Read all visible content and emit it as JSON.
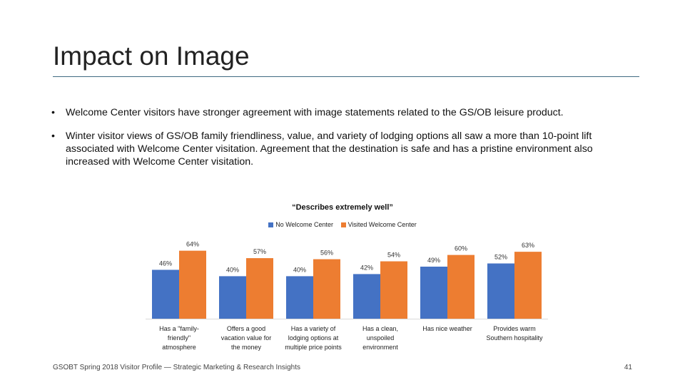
{
  "slide": {
    "title": "Impact on Image",
    "bullets": [
      "Welcome Center visitors have stronger agreement with image statements related to the GS/OB leisure product.",
      "Winter visitor views of GS/OB family friendliness, value, and variety of lodging options all saw a more than 10-point lift associated with Welcome Center visitation. Agreement that the destination is safe and has a pristine environment also increased with Welcome Center visitation."
    ],
    "bullet_glyph": "•",
    "footer": "GSOBT Spring 2018 Visitor Profile — Strategic Marketing & Research Insights",
    "page_number": "41"
  },
  "chart_data": {
    "type": "bar",
    "title": "“Describes extremely well”",
    "categories": [
      [
        "Has a \"family-",
        "friendly\"",
        "atmosphere"
      ],
      [
        "Offers a good",
        "vacation value for",
        "the money"
      ],
      [
        "Has a variety of",
        "lodging options at",
        "multiple price points"
      ],
      [
        "Has a clean,",
        "unspoiled",
        "environment"
      ],
      [
        "Has nice weather"
      ],
      [
        "Provides warm",
        "Southern hospitality"
      ]
    ],
    "series": [
      {
        "name": "No Welcome Center",
        "color": "#4472c4",
        "values": [
          46,
          40,
          40,
          42,
          49,
          52
        ],
        "labels": [
          "46%",
          "40%",
          "40%",
          "42%",
          "49%",
          "52%"
        ]
      },
      {
        "name": "Visited Welcome Center",
        "color": "#ed7d31",
        "values": [
          64,
          57,
          56,
          54,
          60,
          63
        ],
        "labels": [
          "64%",
          "57%",
          "56%",
          "54%",
          "60%",
          "63%"
        ]
      }
    ],
    "ylim": [
      0,
      100
    ],
    "grid": false,
    "legend_position": "top"
  }
}
